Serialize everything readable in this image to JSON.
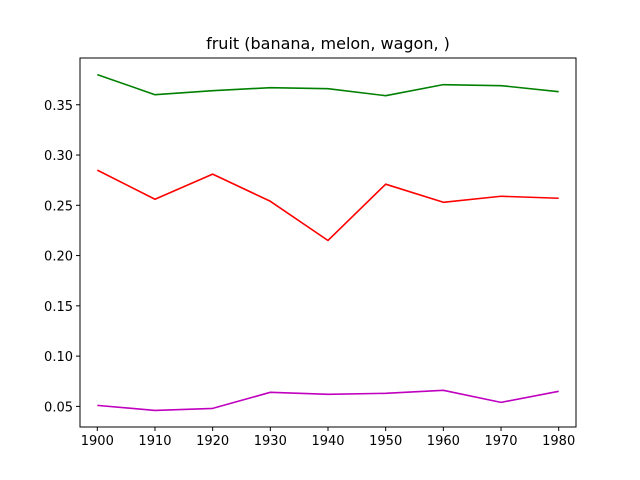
{
  "chart_data": {
    "type": "line",
    "title": "fruit (banana, melon, wagon, )",
    "xlabel": "",
    "ylabel": "",
    "x": [
      1900,
      1910,
      1920,
      1930,
      1940,
      1950,
      1960,
      1970,
      1980
    ],
    "xlim": [
      1897.0,
      1983.0
    ],
    "ylim": [
      0.0295,
      0.3965
    ],
    "xticks": [
      1900,
      1910,
      1920,
      1930,
      1940,
      1950,
      1960,
      1970,
      1980
    ],
    "yticks": [
      0.05,
      0.1,
      0.15,
      0.2,
      0.25,
      0.3,
      0.35
    ],
    "ytick_labels": [
      "0.05",
      "0.10",
      "0.15",
      "0.20",
      "0.25",
      "0.30",
      "0.35"
    ],
    "grid": false,
    "series": [
      {
        "color": "#008000",
        "values": [
          0.38,
          0.36,
          0.364,
          0.367,
          0.366,
          0.359,
          0.37,
          0.369,
          0.363
        ]
      },
      {
        "color": "#ff0000",
        "values": [
          0.285,
          0.256,
          0.281,
          0.254,
          0.215,
          0.271,
          0.253,
          0.259,
          0.257
        ]
      },
      {
        "color": "#bf00bf",
        "values": [
          0.051,
          0.046,
          0.048,
          0.064,
          0.062,
          0.063,
          0.066,
          0.054,
          0.065
        ]
      }
    ]
  }
}
